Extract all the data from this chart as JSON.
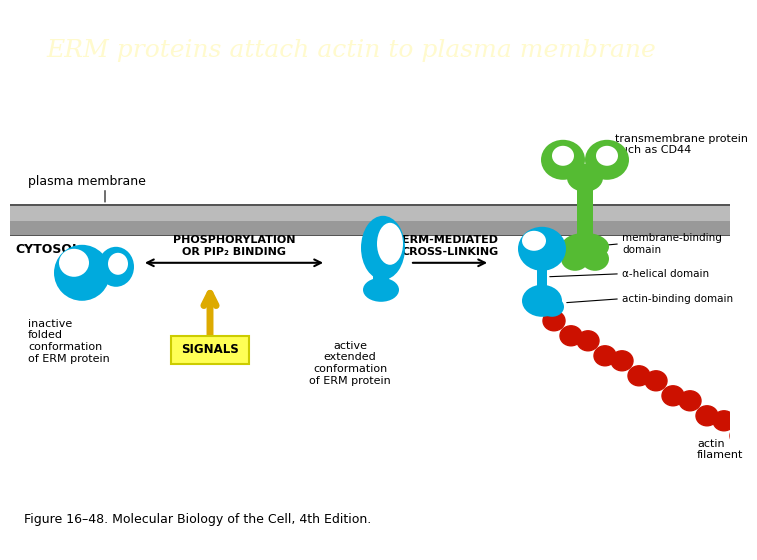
{
  "title": "ERM proteins attach actin to plasma membrane",
  "title_color": "#FFFACD",
  "title_bg_color": "#0d0d3d",
  "title_fontsize": 18,
  "content_bg": "#ffffff",
  "bottom_bar_color": "#3333aa",
  "caption": "Figure 16–48. Molecular Biology of the Cell, 4th Edition.",
  "caption_fontsize": 9,
  "cyan_color": "#00AADD",
  "green_color": "#55BB33",
  "red_color": "#CC1100",
  "yellow_color": "#FFFF55",
  "gold_arrow_color": "#DDAA00",
  "plasma_membrane_label": "plasma membrane",
  "cytosol_label": "CYTOSOL",
  "phosphorylation_label": "PHOSPHORYLATION\nOR PIP₂ BINDING",
  "erm_mediated_label": "ERM-MEDIATED\nCROSS-LINKING",
  "inactive_label": "inactive\nfolded\nconformation\nof ERM protein",
  "active_label": "active\nextended\nconformation\nof ERM protein",
  "signals_label": "SIGNALS",
  "transmembrane_label": "transmembrane protein\nsuch as CD44",
  "membrane_binding_label": "membrane-binding\ndomain",
  "alpha_helical_label": "α-helical domain",
  "actin_binding_label": "actin-binding domain",
  "actin_filament_label": "actin\nfilament"
}
